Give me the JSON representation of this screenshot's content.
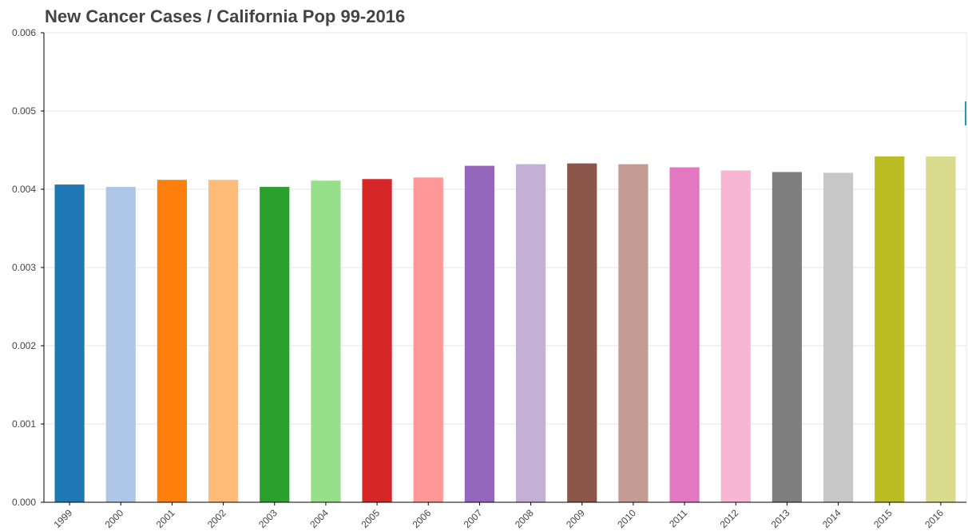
{
  "chart_data": {
    "type": "bar",
    "title": "New Cancer Cases / California Pop 99-2016",
    "xlabel": "",
    "ylabel": "",
    "ylim": [
      0,
      0.006
    ],
    "y_ticks": [
      "0.000",
      "0.001",
      "0.002",
      "0.003",
      "0.004",
      "0.005",
      "0.006"
    ],
    "y_tick_values": [
      0,
      0.001,
      0.002,
      0.003,
      0.004,
      0.005,
      0.006
    ],
    "grid": true,
    "legend": "none",
    "categories": [
      "1999",
      "2000",
      "2001",
      "2002",
      "2003",
      "2004",
      "2005",
      "2006",
      "2007",
      "2008",
      "2009",
      "2010",
      "2011",
      "2012",
      "2013",
      "2014",
      "2015",
      "2016"
    ],
    "values": [
      0.00406,
      0.00403,
      0.00412,
      0.00412,
      0.00403,
      0.00411,
      0.00413,
      0.00415,
      0.0043,
      0.00432,
      0.00433,
      0.00432,
      0.00428,
      0.00424,
      0.00422,
      0.00421,
      0.00442,
      0.00442
    ],
    "colors": [
      "#1f77b4",
      "#aec7e8",
      "#ff7f0e",
      "#ffbb78",
      "#2ca02c",
      "#98df8a",
      "#d62728",
      "#ff9896",
      "#9467bd",
      "#c5b0d5",
      "#8c564b",
      "#c49c94",
      "#e377c2",
      "#f7b6d2",
      "#7f7f7f",
      "#c7c7c7",
      "#bcbd22",
      "#dbdb8d"
    ]
  }
}
